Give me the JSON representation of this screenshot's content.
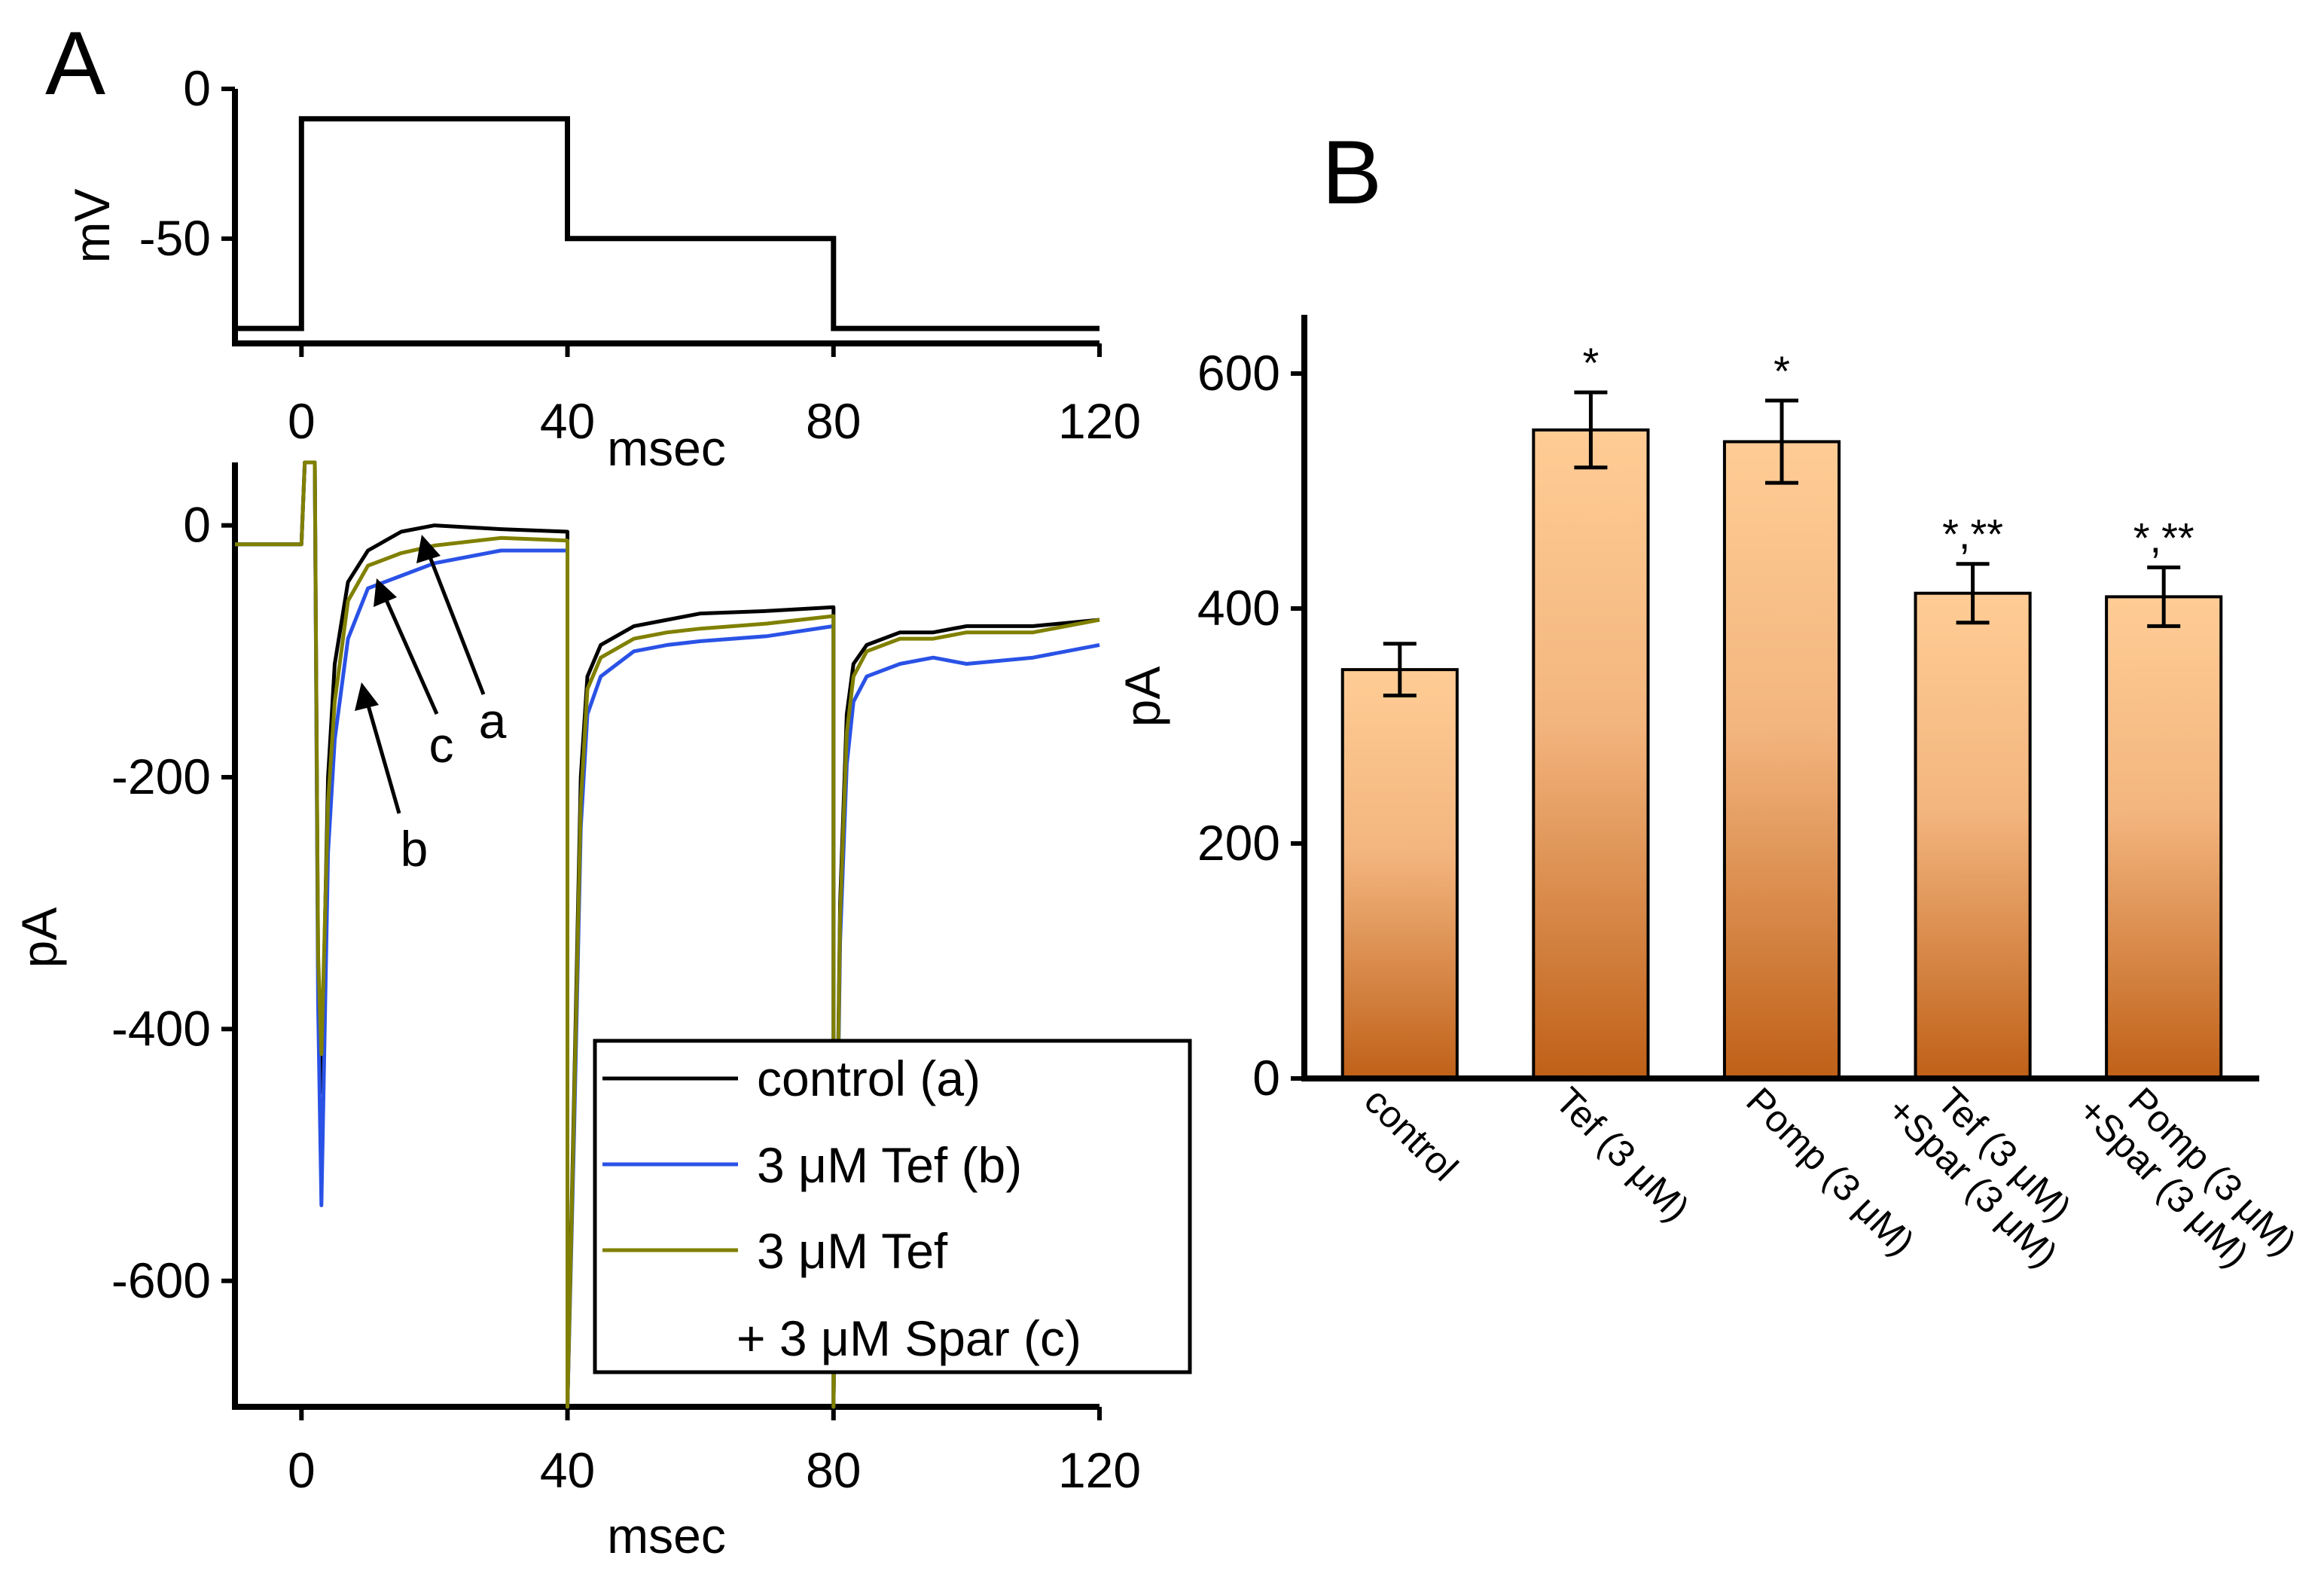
{
  "chart_data": [
    {
      "panel": "A",
      "type": "line",
      "subplot": "voltage-protocol",
      "ylabel": "mV",
      "xlabel": "msec",
      "xlim": [
        -10,
        120
      ],
      "ylim": [
        -85,
        0
      ],
      "xticks": [
        "0",
        "40",
        "80",
        "120"
      ],
      "yticks": [
        "0",
        "-50"
      ],
      "protocol": {
        "x": [
          -10,
          0,
          0,
          40,
          40,
          80,
          80,
          120
        ],
        "y": [
          -80,
          -80,
          -10,
          -10,
          -50,
          -50,
          -80,
          -80
        ]
      }
    },
    {
      "panel": "A",
      "type": "line",
      "subplot": "current-traces",
      "ylabel": "pA",
      "xlabel": "msec",
      "xlim": [
        -10,
        120
      ],
      "ylim": [
        -700,
        50
      ],
      "xticks": [
        "0",
        "40",
        "80",
        "120"
      ],
      "yticks": [
        "0",
        "-200",
        "-400",
        "-600"
      ],
      "legend": {
        "placement": "bottom-right",
        "entries": [
          "control (a)",
          "3 μM Tef (b)",
          "3 μM Tef",
          "+ 3 μM Spar (c)"
        ]
      },
      "annotations": [
        "a",
        "b",
        "c"
      ],
      "series": [
        {
          "name": "control (a)",
          "color": "#000000",
          "x": [
            -10,
            0,
            0.5,
            2,
            2.5,
            3,
            4,
            5,
            7,
            10,
            15,
            20,
            30,
            40,
            40,
            41,
            42,
            43,
            45,
            50,
            55,
            60,
            70,
            80,
            80,
            81,
            82,
            83,
            85,
            90,
            95,
            100,
            110,
            120
          ],
          "y": [
            -15,
            -15,
            50,
            50,
            -350,
            -450,
            -200,
            -110,
            -45,
            -20,
            -5,
            0,
            -3,
            -5,
            -700,
            -450,
            -200,
            -120,
            -95,
            -80,
            -75,
            -70,
            -68,
            -65,
            -700,
            -300,
            -150,
            -110,
            -95,
            -85,
            -85,
            -80,
            -80,
            -75
          ]
        },
        {
          "name": "3 μM Tef (b)",
          "color": "#2a52e6",
          "x": [
            -10,
            0,
            0.5,
            2,
            2.5,
            3,
            4,
            5,
            7,
            10,
            15,
            20,
            30,
            40,
            40,
            41,
            42,
            43,
            45,
            50,
            55,
            60,
            70,
            80,
            80,
            81,
            82,
            83,
            85,
            90,
            95,
            100,
            110,
            120
          ],
          "y": [
            -15,
            -15,
            50,
            50,
            -380,
            -540,
            -260,
            -170,
            -90,
            -50,
            -40,
            -30,
            -20,
            -20,
            -700,
            -480,
            -240,
            -150,
            -120,
            -100,
            -95,
            -92,
            -88,
            -80,
            -700,
            -330,
            -190,
            -140,
            -120,
            -110,
            -105,
            -110,
            -105,
            -95
          ]
        },
        {
          "name": "3 μM Tef + 3 μM Spar (c)",
          "color": "#808000",
          "x": [
            -10,
            0,
            0.5,
            2,
            2.5,
            3,
            4,
            5,
            7,
            10,
            15,
            20,
            30,
            40,
            40,
            41,
            42,
            43,
            45,
            50,
            55,
            60,
            70,
            80,
            80,
            81,
            82,
            83,
            85,
            90,
            95,
            100,
            110,
            120
          ],
          "y": [
            -15,
            -15,
            50,
            50,
            -340,
            -420,
            -220,
            -140,
            -60,
            -32,
            -22,
            -16,
            -10,
            -12,
            -700,
            -460,
            -220,
            -130,
            -105,
            -90,
            -85,
            -82,
            -78,
            -72,
            -700,
            -310,
            -165,
            -120,
            -100,
            -90,
            -90,
            -85,
            -85,
            -75
          ]
        }
      ]
    },
    {
      "panel": "B",
      "type": "bar",
      "ylabel": "pA",
      "ylim": [
        0,
        650
      ],
      "yticks": [
        "0",
        "200",
        "400",
        "600"
      ],
      "categories": [
        "control",
        "Tef (3 μM)",
        "Pomp (3 μM)",
        "Tef (3 μM)\n+Spar (3 μM)",
        "Pomp (3 μM)\n+Spar (3 μM)"
      ],
      "values": [
        348,
        552,
        542,
        413,
        410
      ],
      "errors": [
        22,
        32,
        35,
        25,
        25
      ],
      "significance": [
        "",
        "*",
        "*",
        "*,**",
        "*,**"
      ],
      "colors": {
        "bar_top": "#ffcc95",
        "bar_bottom": "#bf6018"
      }
    }
  ],
  "panel_labels": {
    "a": "A",
    "b": "B"
  }
}
